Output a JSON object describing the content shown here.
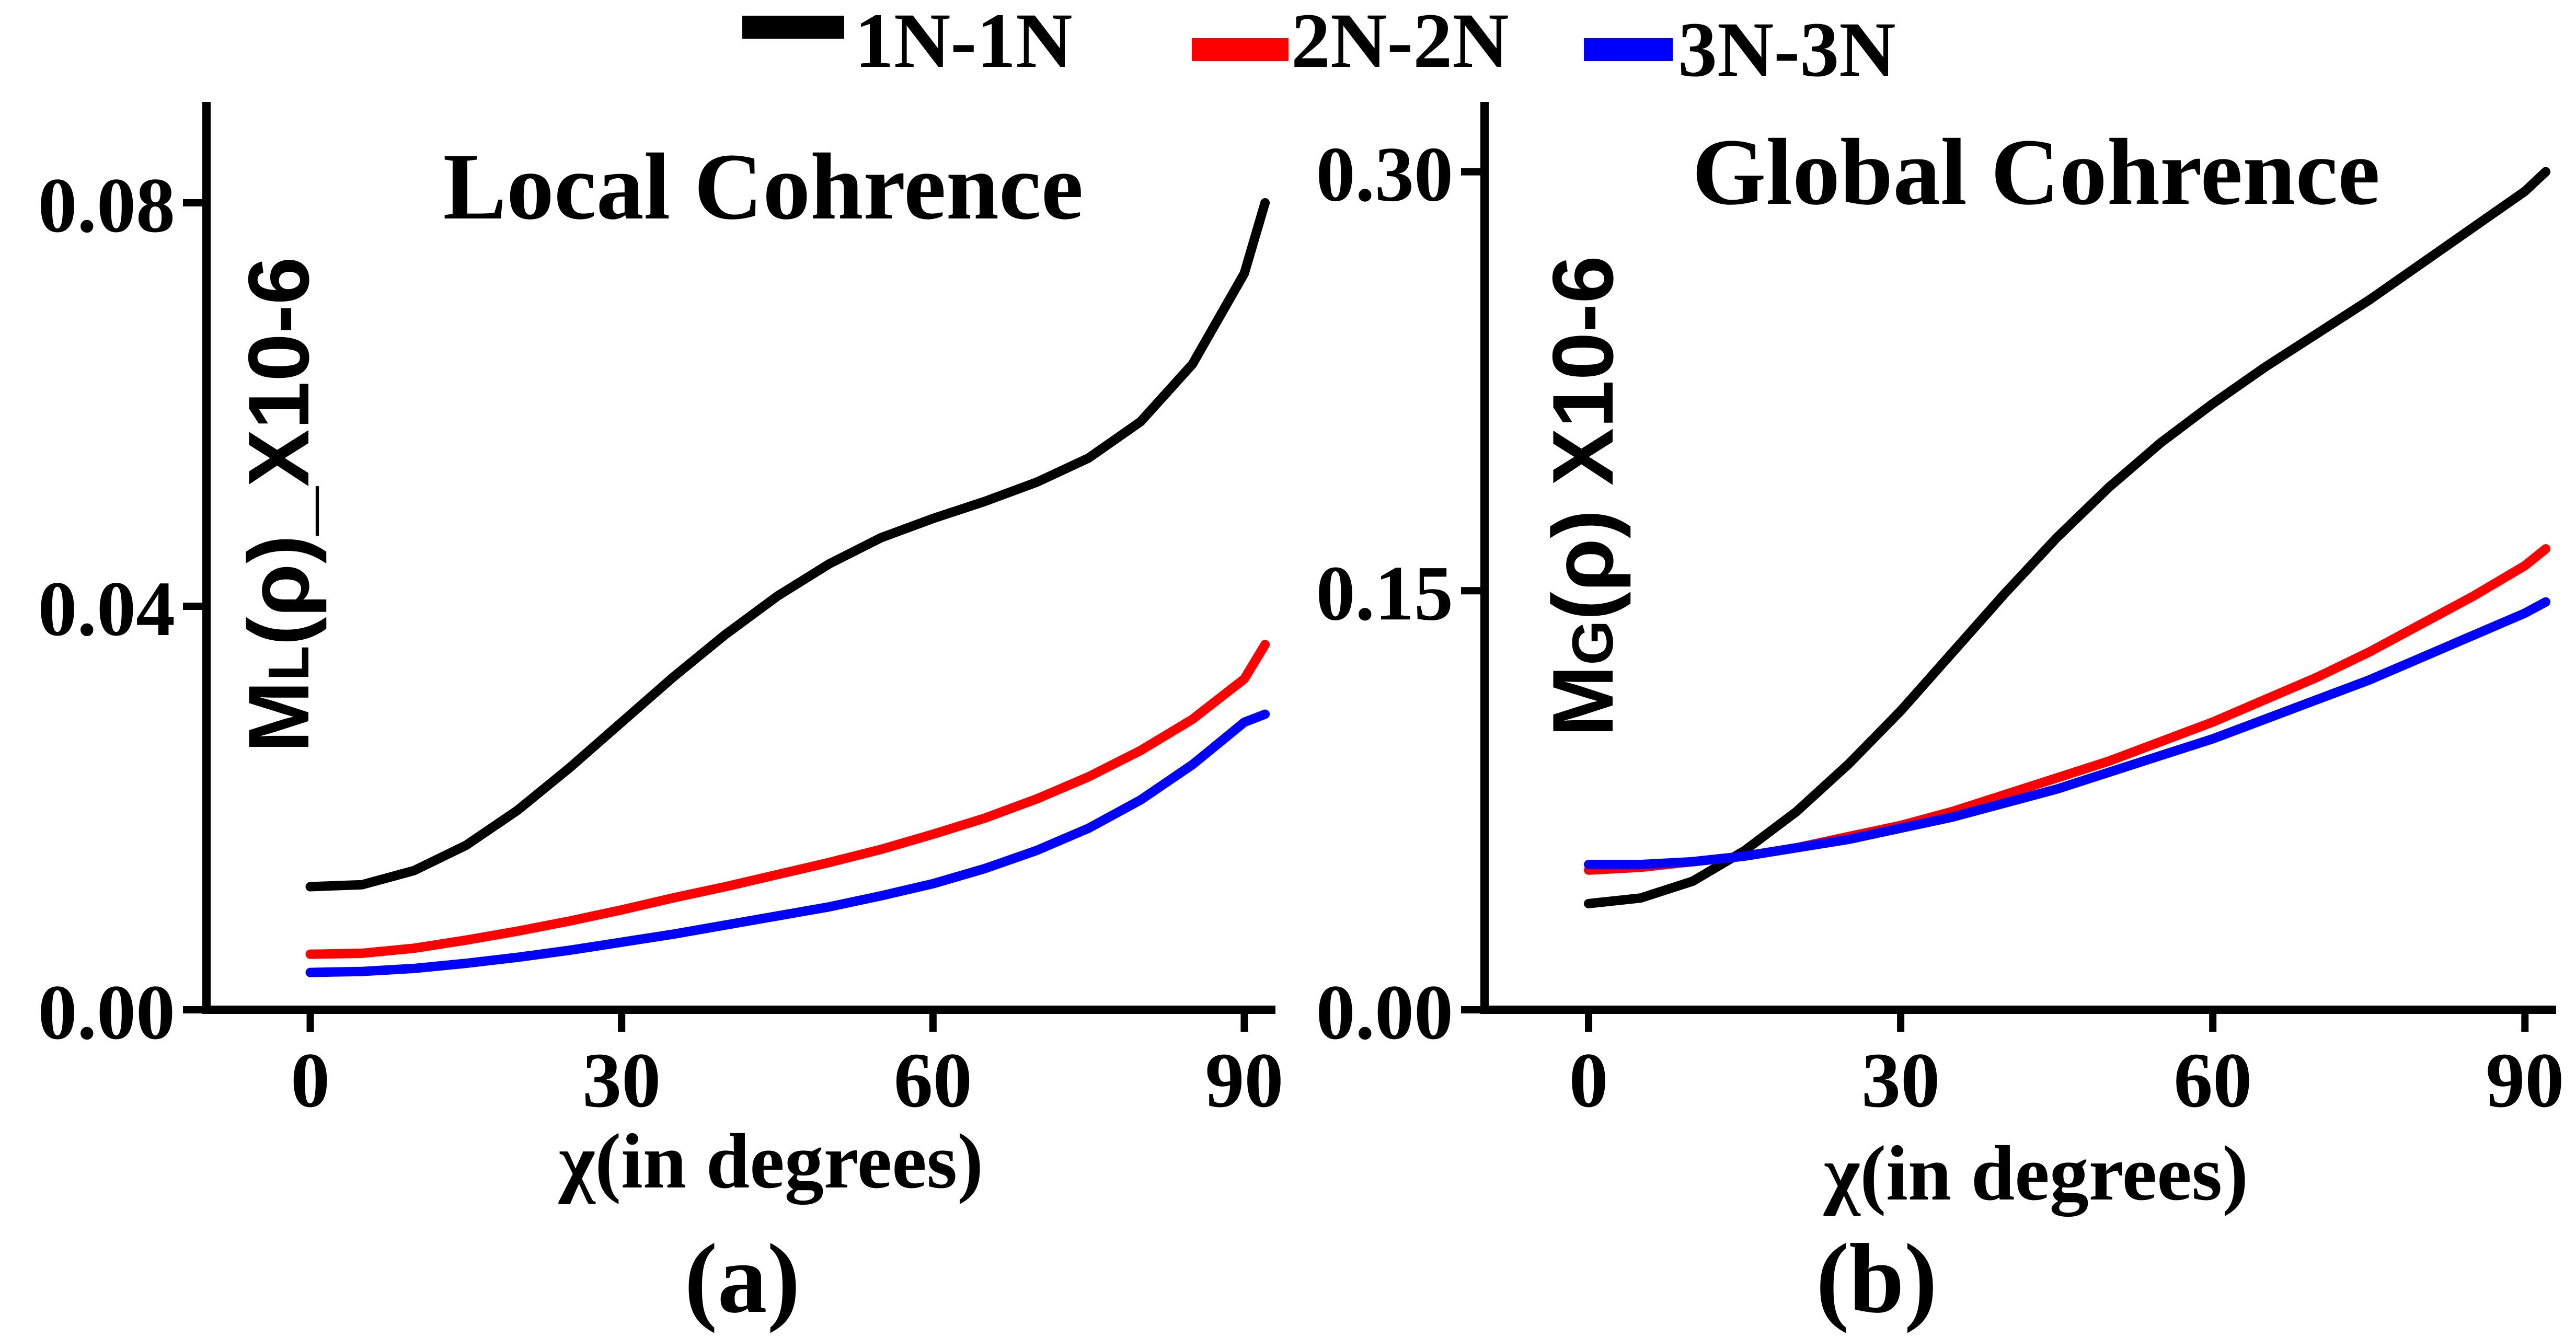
{
  "chart_data": [
    {
      "type": "line",
      "panel_label": "(a)",
      "title": "Local Cohrence",
      "ylabel": {
        "main": "M",
        "sub": "L",
        "rest": "(ρ)_X10-6"
      },
      "xlabel": "χ(in degrees)",
      "xlim": [
        -10,
        93
      ],
      "ylim": [
        0,
        0.09
      ],
      "xticks": [
        0,
        30,
        60,
        90
      ],
      "xtick_labels": [
        "0",
        "30",
        "60",
        "90"
      ],
      "yticks": [
        0.0,
        0.04,
        0.08
      ],
      "ytick_labels": [
        "0.00",
        "0.04",
        "0.08"
      ],
      "grid": false,
      "series": [
        {
          "name": "1N-1N",
          "color": "#000000",
          "x": [
            0,
            5,
            10,
            15,
            20,
            25,
            30,
            35,
            40,
            45,
            50,
            55,
            60,
            65,
            70,
            75,
            80,
            85,
            90,
            92
          ],
          "y": [
            0.0122,
            0.0124,
            0.0138,
            0.0163,
            0.0198,
            0.024,
            0.0285,
            0.033,
            0.0372,
            0.041,
            0.0442,
            0.0468,
            0.0487,
            0.0504,
            0.0523,
            0.0547,
            0.0583,
            0.064,
            0.073,
            0.08
          ]
        },
        {
          "name": "2N-2N",
          "color": "#ff0000",
          "x": [
            0,
            5,
            10,
            15,
            20,
            25,
            30,
            35,
            40,
            45,
            50,
            55,
            60,
            65,
            70,
            75,
            80,
            85,
            90,
            92
          ],
          "y": [
            0.0055,
            0.0056,
            0.0061,
            0.0069,
            0.0078,
            0.0088,
            0.0099,
            0.0111,
            0.0122,
            0.0134,
            0.0146,
            0.0159,
            0.0174,
            0.019,
            0.0209,
            0.0231,
            0.0257,
            0.0288,
            0.0328,
            0.0362
          ]
        },
        {
          "name": "3N-3N",
          "color": "#0000ff",
          "x": [
            0,
            5,
            10,
            15,
            20,
            25,
            30,
            35,
            40,
            45,
            50,
            55,
            60,
            65,
            70,
            75,
            80,
            85,
            90,
            92
          ],
          "y": [
            0.0037,
            0.0038,
            0.0041,
            0.0046,
            0.0052,
            0.0059,
            0.0067,
            0.0075,
            0.0084,
            0.0093,
            0.0102,
            0.0113,
            0.0125,
            0.014,
            0.0158,
            0.018,
            0.0208,
            0.0243,
            0.0285,
            0.0293
          ]
        }
      ]
    },
    {
      "type": "line",
      "panel_label": "(b)",
      "title": "Global Cohrence",
      "ylabel": {
        "main": "M",
        "sub": "G",
        "rest": "(ρ) X10-6"
      },
      "xlabel": "χ(in degrees)",
      "xlim": [
        -10,
        93
      ],
      "ylim": [
        0,
        0.325
      ],
      "xticks": [
        0,
        30,
        60,
        90
      ],
      "xtick_labels": [
        "0",
        "30",
        "60",
        "90"
      ],
      "yticks": [
        0.0,
        0.15,
        0.3
      ],
      "ytick_labels": [
        "0.00",
        "0.15",
        "0.30"
      ],
      "grid": false,
      "series": [
        {
          "name": "1N-1N",
          "color": "#000000",
          "x": [
            0,
            5,
            10,
            15,
            20,
            25,
            30,
            35,
            40,
            45,
            50,
            55,
            60,
            65,
            70,
            75,
            80,
            85,
            90,
            92
          ],
          "y": [
            0.038,
            0.04,
            0.046,
            0.057,
            0.071,
            0.088,
            0.107,
            0.128,
            0.149,
            0.169,
            0.187,
            0.203,
            0.217,
            0.23,
            0.242,
            0.254,
            0.267,
            0.28,
            0.293,
            0.3
          ]
        },
        {
          "name": "2N-2N",
          "color": "#ff0000",
          "x": [
            0,
            5,
            10,
            15,
            20,
            25,
            30,
            35,
            40,
            45,
            50,
            55,
            60,
            65,
            70,
            75,
            80,
            85,
            90,
            92
          ],
          "y": [
            0.05,
            0.051,
            0.053,
            0.055,
            0.058,
            0.062,
            0.066,
            0.071,
            0.077,
            0.083,
            0.089,
            0.096,
            0.103,
            0.111,
            0.119,
            0.128,
            0.138,
            0.148,
            0.159,
            0.165
          ]
        },
        {
          "name": "3N-3N",
          "color": "#0000ff",
          "x": [
            0,
            5,
            10,
            15,
            20,
            25,
            30,
            35,
            40,
            45,
            50,
            55,
            60,
            65,
            70,
            75,
            80,
            85,
            90,
            92
          ],
          "y": [
            0.052,
            0.052,
            0.053,
            0.055,
            0.058,
            0.061,
            0.065,
            0.069,
            0.074,
            0.079,
            0.085,
            0.091,
            0.097,
            0.104,
            0.111,
            0.118,
            0.126,
            0.134,
            0.142,
            0.146
          ]
        }
      ]
    }
  ],
  "legend": {
    "placement": "top-center",
    "entries": [
      {
        "label": "1N-1N",
        "color": "#000000"
      },
      {
        "label": "2N-2N",
        "color": "#ff0000"
      },
      {
        "label": "3N-3N",
        "color": "#0000ff"
      }
    ]
  }
}
